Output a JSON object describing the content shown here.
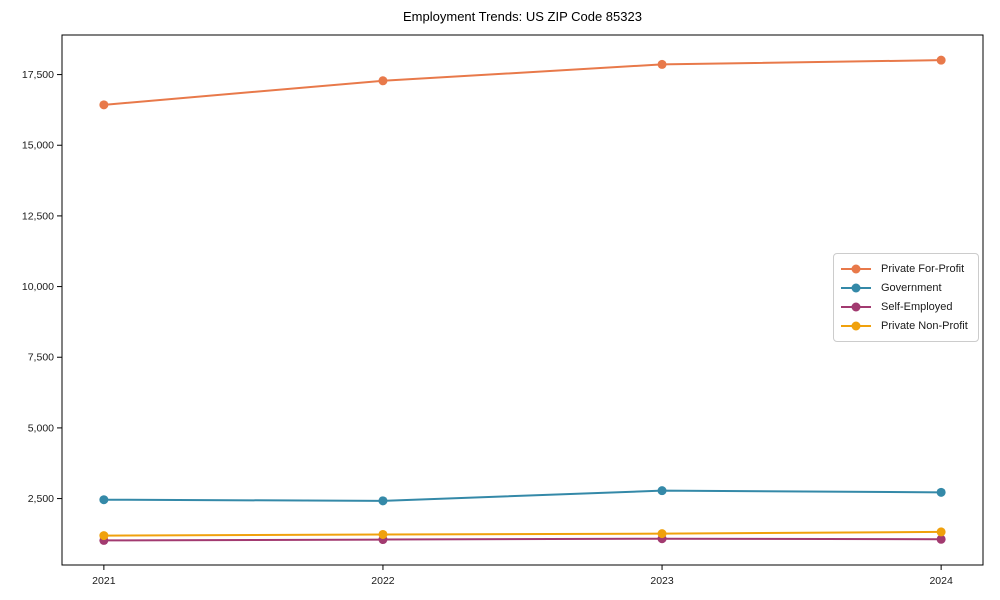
{
  "chart_data": {
    "type": "line",
    "title": "Employment Trends: US ZIP Code 85323",
    "x": [
      2021,
      2022,
      2023,
      2024
    ],
    "x_tick_labels": [
      "2021",
      "2022",
      "2023",
      "2024"
    ],
    "yticks": [
      2500,
      5000,
      7500,
      10000,
      12500,
      15000,
      17500
    ],
    "ytick_labels": [
      "2,500",
      "5,000",
      "7,500",
      "10,000",
      "12,500",
      "15,000",
      "17,500"
    ],
    "xlim": [
      2020.85,
      2024.15
    ],
    "ylim": [
      150,
      18900
    ],
    "grid": false,
    "legend_position": "center-right",
    "series": [
      {
        "name": "Private For-Profit",
        "color": "#e8794a",
        "values": [
          16430,
          17280,
          17860,
          18010
        ]
      },
      {
        "name": "Government",
        "color": "#3489a8",
        "values": [
          2460,
          2420,
          2780,
          2720
        ]
      },
      {
        "name": "Self-Employed",
        "color": "#a23a70",
        "values": [
          1020,
          1050,
          1080,
          1060
        ]
      },
      {
        "name": "Private Non-Profit",
        "color": "#f0a10c",
        "values": [
          1190,
          1230,
          1260,
          1320
        ]
      }
    ],
    "axis_color": "#000000",
    "tick_label_color": "#1a1a1a",
    "legend_border_color": "#cccccc"
  }
}
